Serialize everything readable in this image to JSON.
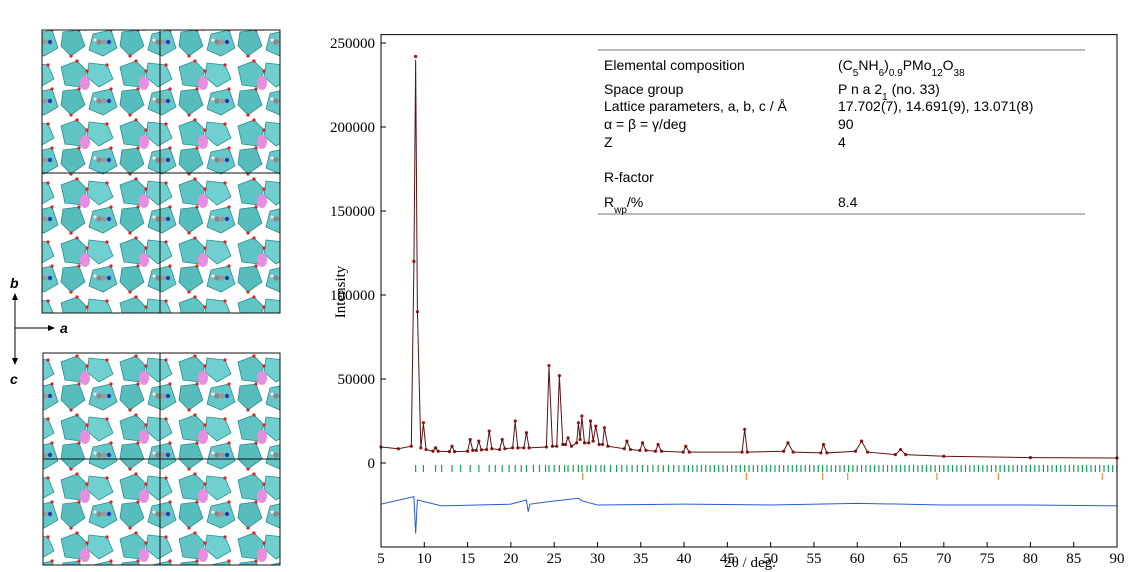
{
  "structure": {
    "axes": [
      "b",
      "a",
      "c"
    ]
  },
  "chart_data": {
    "type": "line",
    "xlabel": "2θ  / deg.",
    "ylabel": "Intensity",
    "xlim": [
      5,
      90
    ],
    "ylim": [
      -50000,
      255000
    ],
    "xticks": [
      5,
      10,
      15,
      20,
      25,
      30,
      35,
      40,
      45,
      50,
      55,
      60,
      65,
      70,
      75,
      80,
      85,
      90
    ],
    "yticks": [
      0,
      50000,
      100000,
      150000,
      200000,
      250000
    ],
    "x": [
      5,
      7,
      8.5,
      8.8,
      9.0,
      9.2,
      9.6,
      9.9,
      10.2,
      11.0,
      11.3,
      11.6,
      12.9,
      13.2,
      13.5,
      15.0,
      15.3,
      15.6,
      16.0,
      16.3,
      16.6,
      17.2,
      17.5,
      17.8,
      18.7,
      19.0,
      19.3,
      20.2,
      20.5,
      20.8,
      21.5,
      21.8,
      22.1,
      24.1,
      24.4,
      24.8,
      25.3,
      25.6,
      26.0,
      26.3,
      26.6,
      27.0,
      27.6,
      27.8,
      28.0,
      28.2,
      28.5,
      29.0,
      29.2,
      29.5,
      29.8,
      30.2,
      30.6,
      30.8,
      31.2,
      33.1,
      33.4,
      33.8,
      34.9,
      35.2,
      35.6,
      36.7,
      37.0,
      37.4,
      39.9,
      40.2,
      40.6,
      46.7,
      47.0,
      47.3,
      51.5,
      52.0,
      52.6,
      55.8,
      56.1,
      56.5,
      59.8,
      60.5,
      61.2,
      64.4,
      65.0,
      65.6,
      70,
      80,
      90
    ],
    "series": [
      {
        "mode": "markers",
        "color": "#a3161a",
        "values": [
          9500,
          8500,
          10000,
          120000,
          242000,
          90000,
          9000,
          24000,
          8000,
          7000,
          9000,
          7000,
          6800,
          10000,
          6800,
          7000,
          14000,
          7500,
          7500,
          13000,
          7800,
          8000,
          19000,
          8500,
          8000,
          14000,
          8500,
          9000,
          25000,
          9000,
          9000,
          18000,
          9000,
          9500,
          58000,
          10000,
          10000,
          52000,
          11000,
          11000,
          15000,
          10000,
          12000,
          24000,
          14000,
          28000,
          12000,
          12000,
          25000,
          13000,
          22000,
          11000,
          11000,
          21000,
          10000,
          8500,
          13000,
          8000,
          7500,
          12000,
          7500,
          7000,
          11000,
          7000,
          6500,
          10000,
          6500,
          6500,
          20000,
          6500,
          7000,
          12000,
          6500,
          6000,
          11000,
          6000,
          7000,
          13000,
          6500,
          5000,
          8000,
          5000,
          4000,
          3200,
          3000
        ]
      },
      {
        "mode": "line",
        "color": "#5c1212",
        "values": [
          9500,
          8500,
          10000,
          118000,
          240000,
          92000,
          9000,
          23500,
          8000,
          7000,
          9000,
          7000,
          6800,
          10000,
          6800,
          7000,
          14000,
          7500,
          7500,
          13000,
          7800,
          8000,
          19000,
          8500,
          8000,
          14000,
          8500,
          9000,
          24500,
          9000,
          9000,
          18000,
          9000,
          9500,
          57500,
          10000,
          10000,
          52000,
          11000,
          11000,
          15000,
          10000,
          12000,
          23500,
          14000,
          27500,
          12000,
          12000,
          25000,
          13000,
          22000,
          11000,
          11000,
          21000,
          10000,
          8500,
          13000,
          8000,
          7500,
          12000,
          7500,
          7000,
          11000,
          7000,
          6500,
          10000,
          6500,
          6500,
          20000,
          6500,
          7000,
          12000,
          6500,
          6000,
          11000,
          6000,
          7000,
          13000,
          6500,
          5000,
          8000,
          5000,
          4000,
          3200,
          3000
        ]
      },
      {
        "mode": "line",
        "color": "#2a5bd7",
        "x": [
          5,
          8.8,
          9.0,
          9.2,
          12,
          20,
          21.8,
          22.0,
          22.2,
          24.4,
          27.8,
          28.2,
          30,
          40,
          50,
          60,
          70,
          80,
          90
        ],
        "values": [
          -24500,
          -20000,
          -42000,
          -22000,
          -25500,
          -24500,
          -22000,
          -29000,
          -24500,
          -23000,
          -21000,
          -22500,
          -25000,
          -24500,
          -25000,
          -24000,
          -25000,
          -25000,
          -25500
        ]
      },
      {
        "mode": "ticks",
        "color": "#15a05a",
        "x": [
          9.0,
          9.9,
          11.3,
          12.0,
          13.2,
          14.2,
          15.3,
          16.3,
          17.5,
          18.2,
          19.0,
          19.8,
          20.5,
          21.2,
          21.8,
          22.6,
          23.3,
          24.0,
          24.4,
          25.0,
          25.6,
          26.2,
          26.6,
          27.2,
          27.8,
          28.2,
          28.8,
          29.2,
          29.8,
          30.4,
          30.8,
          31.5,
          32.2,
          32.8,
          33.4,
          34.0,
          34.6,
          35.2,
          35.8,
          36.4,
          37.0,
          37.6,
          38.2,
          38.8,
          39.4,
          40.0,
          40.5,
          41,
          41.5,
          42,
          42.5,
          43,
          43.5,
          44,
          44.5,
          45,
          45.5,
          46,
          46.5,
          47,
          47.5,
          48,
          48.5,
          49,
          49.5,
          50,
          50.5,
          51,
          51.5,
          52,
          52.5,
          53,
          53.5,
          54,
          54.5,
          55,
          55.5,
          56,
          56.5,
          57,
          57.5,
          58,
          58.5,
          59,
          59.5,
          60,
          60.5,
          61,
          61.5,
          62,
          62.5,
          63,
          63.5,
          64,
          64.5,
          65,
          65.5,
          66,
          66.5,
          67,
          67.5,
          68,
          68.5,
          69,
          69.5,
          70,
          70.5,
          71,
          71.5,
          72,
          72.5,
          73,
          73.5,
          74,
          74.5,
          75,
          75.5,
          76,
          76.5,
          77,
          77.5,
          78,
          78.5,
          79,
          79.5,
          80,
          80.5,
          81,
          81.5,
          82,
          82.5,
          83,
          83.5,
          84,
          84.5,
          85,
          85.5,
          86,
          86.5,
          87,
          87.5,
          88,
          88.5,
          89,
          89.5,
          90
        ]
      },
      {
        "mode": "ticks",
        "color": "#f08a3c",
        "x": [
          28.3,
          47.2,
          56.0,
          58.9,
          69.2,
          76.3,
          88.3
        ]
      }
    ],
    "table": {
      "rows": [
        {
          "label": [
            "Elemental composition"
          ],
          "value": [
            "(C",
            "5",
            "NH",
            "6",
            ")",
            "0.9",
            "PMo",
            "12",
            "O",
            "38"
          ]
        },
        {
          "label": [
            "Space group"
          ],
          "value": [
            "P n a 2",
            "1",
            "  (no.  33)"
          ]
        },
        {
          "label": [
            "Lattice parameters, a, b, c / Å"
          ],
          "value": [
            "17.702(7), 14.691(9), 13.071(8)"
          ]
        },
        {
          "label": [
            "α = β = γ/deg"
          ],
          "value": [
            "90"
          ]
        },
        {
          "label": [
            "Z"
          ],
          "value": [
            "4"
          ]
        },
        {
          "label": [
            "R-factor"
          ],
          "value": []
        },
        {
          "label": [
            "R",
            "wp",
            "/%"
          ],
          "value": [
            "8.4"
          ]
        }
      ]
    }
  }
}
